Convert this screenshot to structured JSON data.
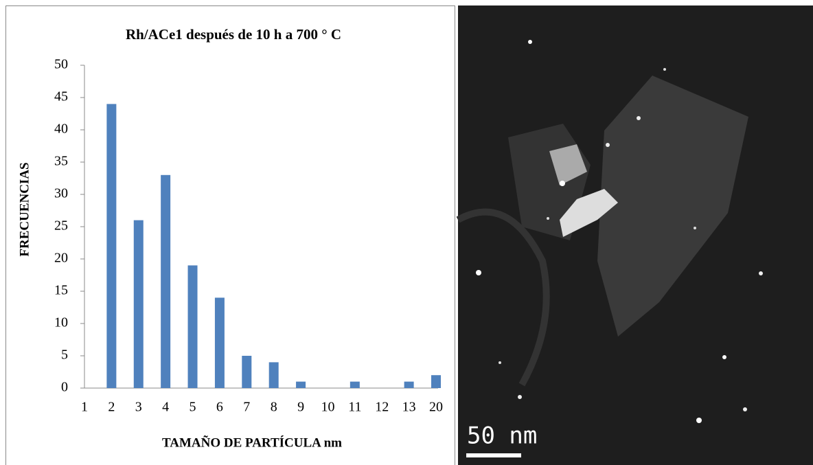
{
  "chart_data": {
    "type": "bar",
    "title": "Rh/ACe1 después de 10 h a 700 ° C",
    "x_label": "TAMAÑO DE PARTÍCULA nm",
    "y_label": "FRECUENCIAS",
    "categories": [
      "1",
      "2",
      "3",
      "4",
      "5",
      "6",
      "7",
      "8",
      "9",
      "10",
      "11",
      "12",
      "13",
      "20"
    ],
    "values": [
      0,
      44,
      26,
      33,
      19,
      14,
      5,
      4,
      1,
      0,
      1,
      0,
      1,
      2
    ],
    "color": "#4f81bd",
    "ylim": [
      0,
      50
    ],
    "yticks": [
      0,
      5,
      10,
      15,
      20,
      25,
      30,
      35,
      40,
      45,
      50
    ],
    "grid": false
  },
  "image": {
    "scale_label": "50 nm"
  }
}
